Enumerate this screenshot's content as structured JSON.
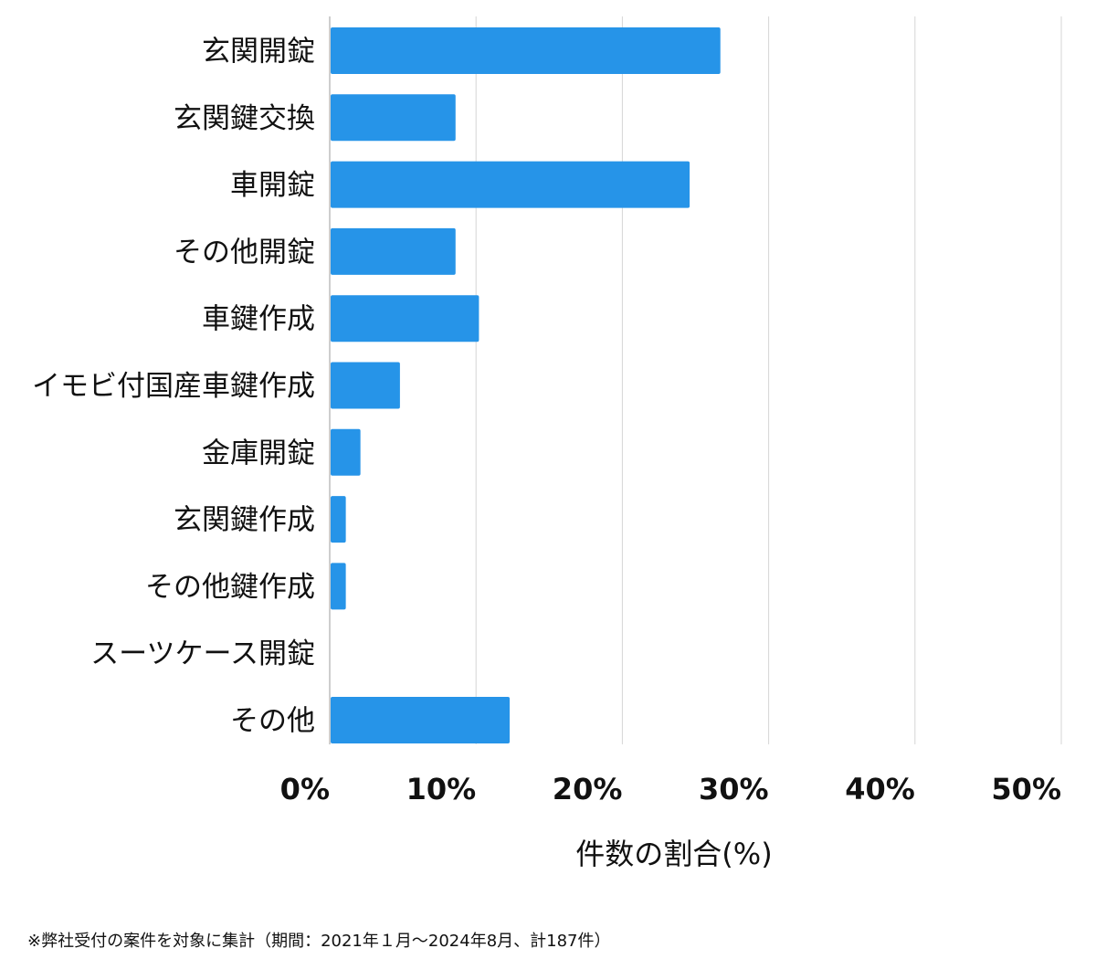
{
  "chart_data": {
    "type": "bar",
    "orientation": "horizontal",
    "categories": [
      "玄関開錠",
      "玄関鍵交換",
      "車開錠",
      "その他開錠",
      "車鍵作成",
      "イモビ付国産車鍵作成",
      "金庫開錠",
      "玄関鍵作成",
      "その他鍵作成",
      "スーツケース開錠",
      "その他"
    ],
    "values": [
      26.7,
      8.6,
      24.6,
      8.6,
      10.2,
      4.8,
      2.1,
      1.1,
      1.1,
      0,
      12.3
    ],
    "xlabel": "件数の割合(%)",
    "xlim": [
      0,
      50
    ],
    "ticks": [
      0,
      10,
      20,
      30,
      40,
      50
    ],
    "tick_labels": [
      "0%",
      "10%",
      "20%",
      "30%",
      "40%",
      "50%"
    ],
    "bar_color": "#2694e8",
    "grid": true,
    "footnote": "※弊社受付の案件を対象に集計（期間：2021年１月〜2024年8月、計187件）"
  }
}
